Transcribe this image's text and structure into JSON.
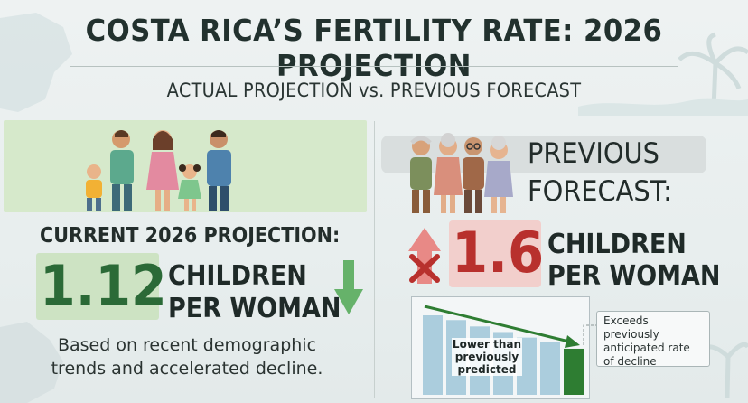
{
  "header": {
    "title": "COSTA RICA’S FERTILITY RATE: 2026 PROJECTION",
    "subtitle": "ACTUAL PROJECTION vs. PREVIOUS FORECAST"
  },
  "current": {
    "label": "CURRENT 2026 PROJECTION:",
    "value": "1.12",
    "unit_line1": "CHILDREN",
    "unit_line2": "PER WOMAN",
    "note_line1": "Based on recent demographic",
    "note_line2": "trends and accelerated decline.",
    "icon": "down-arrow-icon"
  },
  "previous": {
    "label_line1": "PREVIOUS",
    "label_line2": "FORECAST:",
    "value": "1.6",
    "unit_line1": "CHILDREN",
    "unit_line2": "PER WOMAN",
    "icon": "crossed-up-arrow-icon"
  },
  "chart": {
    "lower_line1": "Lower than",
    "lower_line2": "previously",
    "lower_line3": "predicted",
    "exceeds_line1": "Exceeds previously",
    "exceeds_line2": "anticipated rate",
    "exceeds_line3": "of decline",
    "bar_levels": [
      1.0,
      0.94,
      0.86,
      0.79,
      0.72,
      0.66,
      0.58
    ],
    "colors": {
      "bars": "#9ec6d8",
      "trend": "#2e7d32"
    }
  },
  "colors": {
    "accent_green": "#2b6a37",
    "accent_red": "#b8302d",
    "green_bg": "#d6e9cb",
    "red_bg": "#f2cfcc"
  }
}
